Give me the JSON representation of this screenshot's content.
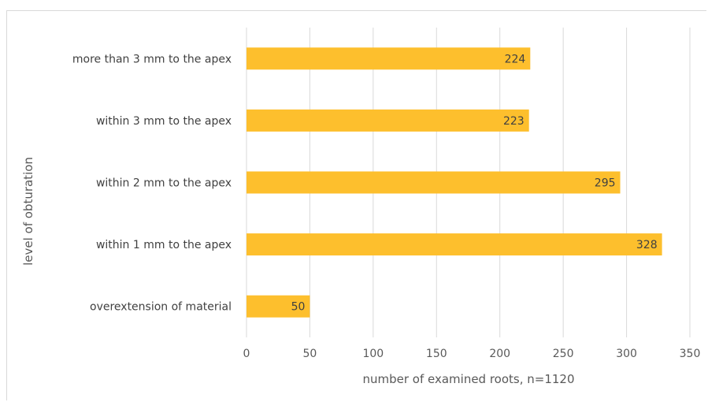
{
  "chart_data": {
    "type": "bar",
    "orientation": "horizontal",
    "title": "",
    "xlabel": "number of examined roots, n=1120",
    "ylabel": "level of obturation",
    "categories": [
      "more than 3 mm to the apex",
      "within 3 mm to the apex",
      "within 2 mm to the apex",
      "within 1 mm to the apex",
      "overextension of material"
    ],
    "values": [
      224,
      223,
      295,
      328,
      50
    ],
    "xlim": [
      0,
      350
    ],
    "xticks": [
      0,
      50,
      100,
      150,
      200,
      250,
      300,
      350
    ],
    "grid": true,
    "legend": "none",
    "bar_color": "#fdbf2d",
    "data_labels": true
  }
}
